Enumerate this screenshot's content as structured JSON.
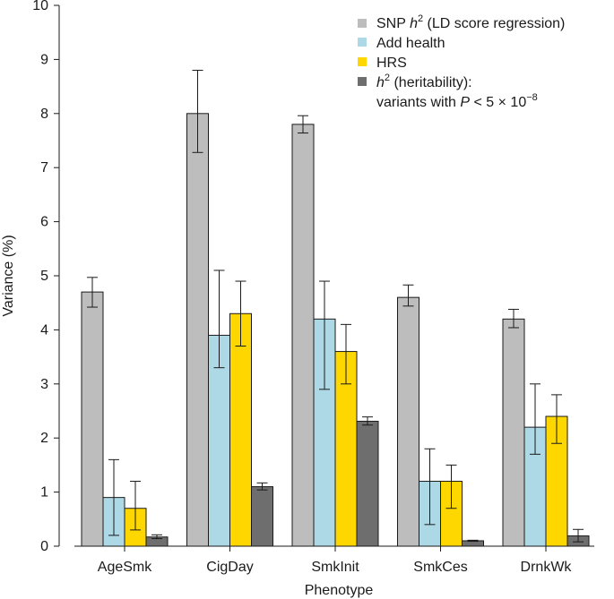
{
  "chart_data": {
    "type": "bar",
    "xlabel": "Phenotype",
    "ylabel": "Variance (%)",
    "ylim": [
      0,
      10
    ],
    "yticks": [
      "0",
      "1",
      "2",
      "3",
      "4",
      "5",
      "6",
      "7",
      "8",
      "9",
      "10"
    ],
    "categories": [
      "AgeSmk",
      "CigDay",
      "SmkInit",
      "SmkCes",
      "DrnkWk"
    ],
    "series": [
      {
        "name": "SNP h² (LD score regression)",
        "color": "#bdbdbd",
        "values": [
          4.7,
          8.0,
          7.8,
          4.6,
          4.2
        ],
        "err_low": [
          4.42,
          7.28,
          7.64,
          4.44,
          4.04
        ],
        "err_high": [
          4.97,
          8.8,
          7.96,
          4.83,
          4.38
        ]
      },
      {
        "name": "Add health",
        "color": "#add8e6",
        "values": [
          0.9,
          3.9,
          4.2,
          1.2,
          2.2
        ],
        "err_low": [
          0.2,
          3.3,
          2.9,
          0.4,
          1.7
        ],
        "err_high": [
          1.6,
          5.1,
          4.9,
          1.8,
          3.0
        ]
      },
      {
        "name": "HRS",
        "color": "#ffd700",
        "values": [
          0.7,
          4.3,
          3.6,
          1.2,
          2.4
        ],
        "err_low": [
          0.3,
          3.7,
          3.0,
          0.7,
          1.9
        ],
        "err_high": [
          1.2,
          4.9,
          4.1,
          1.5,
          2.8
        ]
      },
      {
        "name": "h² (heritability): variants with P < 5 × 10⁻⁸",
        "color": "#6e6e6e",
        "values": [
          0.17,
          1.1,
          2.31,
          0.1,
          0.19
        ],
        "err_low": [
          0.14,
          1.04,
          2.24,
          0.09,
          0.08
        ],
        "err_high": [
          0.21,
          1.17,
          2.39,
          0.11,
          0.31
        ]
      }
    ],
    "legend_position": "top-right",
    "grid": false
  },
  "legend": {
    "snp_prefix": "SNP ",
    "snp_h": "h",
    "snp_sup": "2",
    "snp_suffix": " (LD score regression)",
    "add_health": "Add health",
    "hrs": "HRS",
    "h2_h": "h",
    "h2_sup": "2",
    "h2_suffix": " (heritability):",
    "variants_prefix": "variants with ",
    "variants_p": "P",
    "variants_mid": " < 5 × 10",
    "variants_exp": "−8"
  }
}
